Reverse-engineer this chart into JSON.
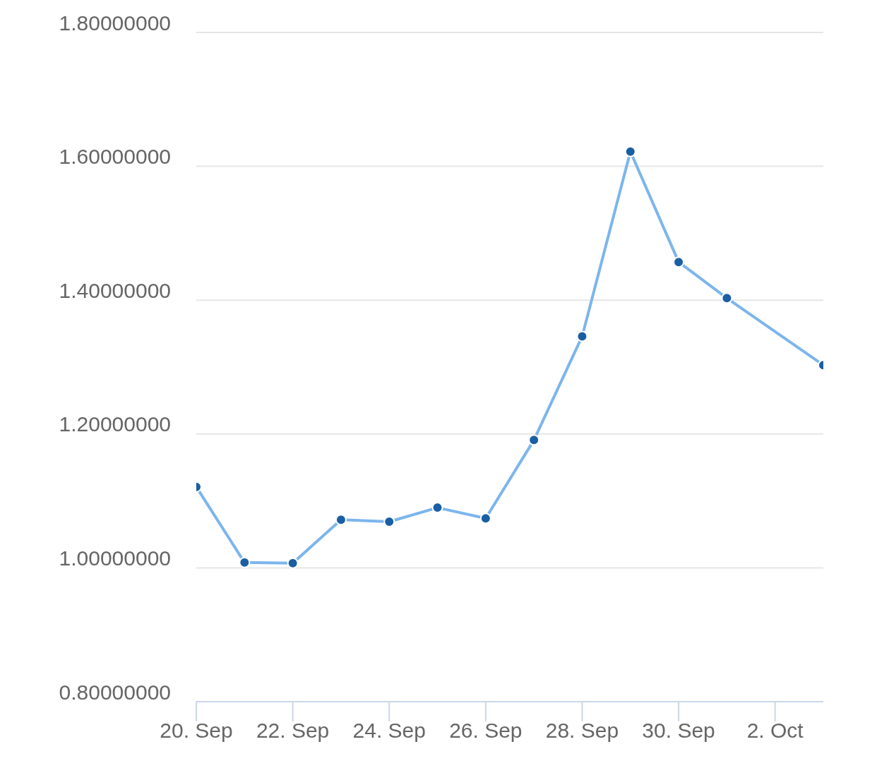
{
  "chart_data": {
    "type": "line",
    "x": [
      "--09-20",
      "--09-21",
      "--09-22",
      "--09-23",
      "--09-24",
      "--09-25",
      "--09-26",
      "--09-27",
      "--09-28",
      "--09-29",
      "--09-30",
      "--10-01",
      "--10-03"
    ],
    "series": [
      {
        "color": "#7cb5ec",
        "values": [
          1.121,
          1.008,
          1.007,
          1.072,
          1.069,
          1.09,
          1.074,
          1.191,
          1.346,
          1.622,
          1.457,
          1.403,
          1.303
        ]
      }
    ],
    "xlim": [
      "--09-20",
      "--10-03"
    ],
    "xticks": [
      {
        "value": "--09-20",
        "label": "20. Sep"
      },
      {
        "value": "--09-22",
        "label": "22. Sep"
      },
      {
        "value": "--09-24",
        "label": "24. Sep"
      },
      {
        "value": "--09-26",
        "label": "26. Sep"
      },
      {
        "value": "--09-28",
        "label": "28. Sep"
      },
      {
        "value": "--09-30",
        "label": "30. Sep"
      },
      {
        "value": "--10-02",
        "label": "2. Oct"
      }
    ],
    "ylim": [
      0.8,
      1.8
    ],
    "yticks": [
      {
        "value": 0.8,
        "label": "0.80000000"
      },
      {
        "value": 1.0,
        "label": "1.00000000"
      },
      {
        "value": 1.2,
        "label": "1.20000000"
      },
      {
        "value": 1.4,
        "label": "1.40000000"
      },
      {
        "value": 1.6,
        "label": "1.60000000"
      },
      {
        "value": 1.8,
        "label": "1.80000000"
      }
    ],
    "grid": "y",
    "legend": false,
    "marker": "circle",
    "line_style": "solid"
  }
}
